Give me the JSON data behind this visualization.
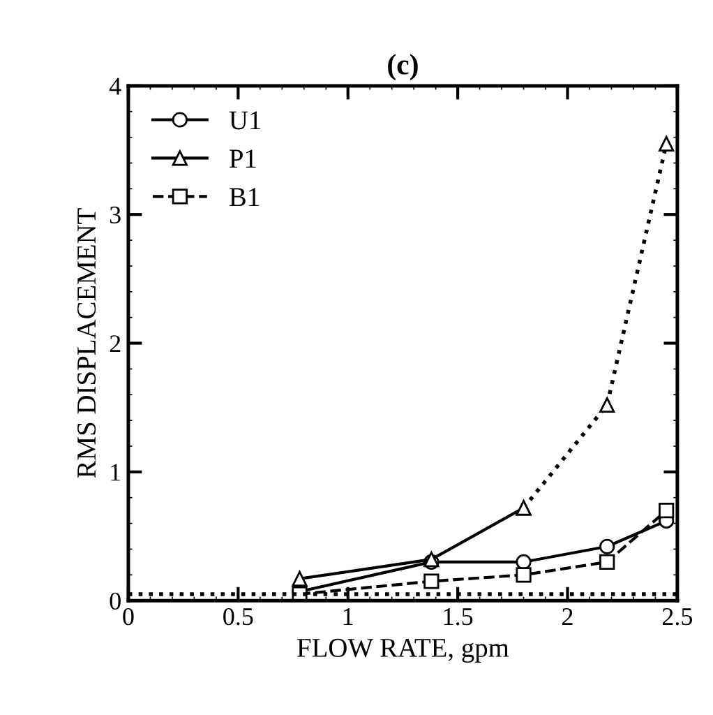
{
  "chart_data": {
    "type": "line",
    "title": "(c)",
    "xlabel": "FLOW RATE, gpm",
    "ylabel": "RMS DISPLACEMENT",
    "xlim": [
      0,
      2.5
    ],
    "ylim": [
      0,
      4
    ],
    "xticks": [
      0,
      0.5,
      1,
      1.5,
      2,
      2.5
    ],
    "yticks": [
      0,
      1,
      2,
      3,
      4
    ],
    "grid": false,
    "legend": "top left",
    "series": [
      {
        "name": "U1",
        "color": "#000000",
        "marker": "circle",
        "line_style": "solid",
        "x": [
          0.78,
          1.38,
          1.8,
          2.18,
          2.45
        ],
        "values": [
          0.07,
          0.3,
          0.3,
          0.42,
          0.62
        ]
      },
      {
        "name": "P1",
        "color": "#000000",
        "marker": "triangle",
        "line_style": "solid",
        "x": [
          0.78,
          1.38,
          1.8
        ],
        "values": [
          0.17,
          0.32,
          0.72
        ]
      },
      {
        "color": "#000000",
        "marker": "triangle",
        "line_style": "dotted",
        "x": [
          1.8,
          2.18,
          2.45
        ],
        "values": [
          0.72,
          1.52,
          3.55
        ]
      },
      {
        "name": "B1",
        "color": "#000000",
        "marker": "square",
        "line_style": "dashed",
        "x": [
          0.78,
          1.38,
          1.8,
          2.18,
          2.45
        ],
        "values": [
          0.05,
          0.15,
          0.2,
          0.3,
          0.7
        ]
      }
    ],
    "ref_lines": [
      {
        "axis": "y",
        "value": 0.05,
        "line_style": "dotted",
        "color": "#000000"
      }
    ]
  }
}
